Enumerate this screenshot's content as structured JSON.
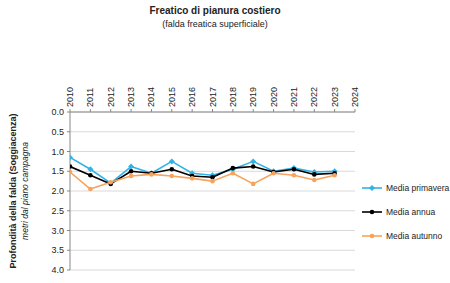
{
  "chart_data": {
    "type": "line",
    "title": "Freatico di pianura costiero",
    "subtitle": "(falda freatica superficiale)",
    "y_label": "Profondità della falda (Soggiacenza)",
    "y_sublabel": "metri dal piano campagna",
    "x": [
      2010,
      2011,
      2012,
      2013,
      2014,
      2015,
      2016,
      2017,
      2018,
      2019,
      2020,
      2021,
      2022,
      2023
    ],
    "series": [
      {
        "name": "Media primavera",
        "color": "#33b2e6",
        "marker": "diamond",
        "values": [
          1.15,
          1.45,
          1.8,
          1.38,
          1.55,
          1.25,
          1.55,
          1.6,
          1.45,
          1.25,
          1.5,
          1.42,
          1.52,
          1.5
        ]
      },
      {
        "name": "Media annua",
        "color": "#000000",
        "marker": "circle",
        "values": [
          1.38,
          1.6,
          1.82,
          1.5,
          1.55,
          1.45,
          1.62,
          1.65,
          1.42,
          1.38,
          1.52,
          1.45,
          1.58,
          1.55
        ]
      },
      {
        "name": "Media autunno",
        "color": "#f7a35c",
        "marker": "circle",
        "values": [
          1.52,
          1.95,
          1.78,
          1.62,
          1.58,
          1.62,
          1.68,
          1.75,
          1.55,
          1.82,
          1.55,
          1.6,
          1.72,
          1.6
        ]
      }
    ],
    "xlim": [
      2010,
      2024
    ],
    "xticks": [
      2010,
      2011,
      2012,
      2013,
      2014,
      2015,
      2016,
      2017,
      2018,
      2019,
      2020,
      2021,
      2022,
      2023,
      2024
    ],
    "ylim": [
      4,
      0
    ],
    "yticks": [
      {
        "value": 0,
        "label": "0.0"
      },
      {
        "value": 0.5,
        "label": "0.5"
      },
      {
        "value": 1,
        "label": "1.0"
      },
      {
        "value": 1.5,
        "label": "1.5"
      },
      {
        "value": 2,
        "label": "2.0"
      },
      {
        "value": 2.5,
        "label": "2.5"
      },
      {
        "value": 3,
        "label": "3.0"
      },
      {
        "value": 3.5,
        "label": "3.5"
      },
      {
        "value": 4,
        "label": "4.0"
      }
    ],
    "grid": true,
    "legend": "right"
  }
}
